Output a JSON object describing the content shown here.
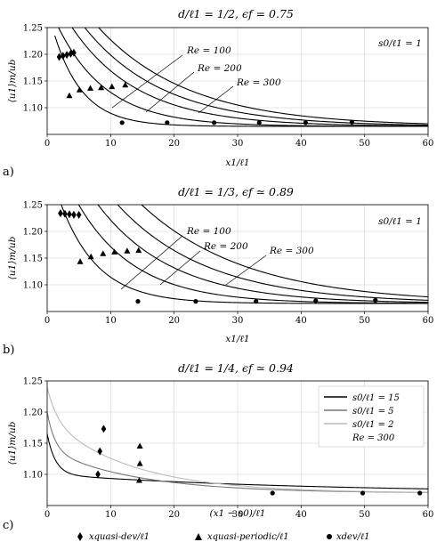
{
  "chart_data": [
    {
      "type": "line",
      "panel": "a)",
      "title": "d/ℓ1 = 1/2, ϵf = 0.75",
      "xlabel": "x1/ℓ1",
      "ylabel": "⟨u1⟩m/ub",
      "xlim": [
        0,
        60
      ],
      "ylim": [
        1.05,
        1.25
      ],
      "xticks": [
        0,
        10,
        20,
        30,
        40,
        50,
        60
      ],
      "yticks": [
        1.1,
        1.15,
        1.2,
        1.25
      ],
      "ytick_labels": [
        "1.10",
        "1.15",
        "1.20",
        "1.25"
      ],
      "grid": true,
      "inset_text": "s0/ℓ1 = 1",
      "annotations": [
        "Re = 100",
        "Re = 200",
        "Re = 300"
      ],
      "series": [
        {
          "a": 0.17,
          "b": 0.22
        },
        {
          "a": 0.2,
          "b": 0.13
        },
        {
          "a": 0.24,
          "b": 0.095
        },
        {
          "a": 0.27,
          "b": 0.08
        },
        {
          "a": 0.3,
          "b": 0.07
        }
      ],
      "markers_quasi_dev": [
        [
          1.9,
          1.195
        ],
        [
          2.5,
          1.197
        ],
        [
          3.1,
          1.199
        ],
        [
          3.7,
          1.201
        ],
        [
          4.2,
          1.203
        ]
      ],
      "markers_quasi_periodic": [
        [
          3.5,
          1.122
        ],
        [
          5.1,
          1.133
        ],
        [
          6.8,
          1.136
        ],
        [
          8.5,
          1.137
        ],
        [
          10.2,
          1.139
        ],
        [
          12.3,
          1.142
        ]
      ],
      "markers_dev": [
        [
          11.8,
          1.072
        ],
        [
          18.9,
          1.072
        ],
        [
          26.3,
          1.072
        ],
        [
          33.4,
          1.072
        ],
        [
          40.7,
          1.072
        ],
        [
          48.0,
          1.073
        ]
      ]
    },
    {
      "type": "line",
      "panel": "b)",
      "title": "d/ℓ1 = 1/3, ϵf ≃ 0.89",
      "xlabel": "x1/ℓ1",
      "ylabel": "⟨u1⟩m/ub",
      "xlim": [
        0,
        60
      ],
      "ylim": [
        1.05,
        1.25
      ],
      "xticks": [
        0,
        10,
        20,
        30,
        40,
        50,
        60
      ],
      "yticks": [
        1.1,
        1.15,
        1.2,
        1.25
      ],
      "ytick_labels": [
        "1.10",
        "1.15",
        "1.20",
        "1.25"
      ],
      "grid": true,
      "inset_text": "s0/ℓ1 = 1",
      "annotations": [
        "Re = 100",
        "Re = 200",
        "Re = 300"
      ],
      "series": [
        {
          "a": 0.22,
          "b": 0.17
        },
        {
          "a": 0.28,
          "b": 0.11
        },
        {
          "a": 0.33,
          "b": 0.085
        },
        {
          "a": 0.37,
          "b": 0.07
        },
        {
          "a": 0.42,
          "b": 0.06
        }
      ],
      "markers_quasi_dev": [
        [
          2.1,
          1.234
        ],
        [
          2.8,
          1.233
        ],
        [
          3.5,
          1.232
        ],
        [
          4.2,
          1.231
        ],
        [
          5.0,
          1.231
        ]
      ],
      "markers_quasi_periodic": [
        [
          5.2,
          1.143
        ],
        [
          6.9,
          1.152
        ],
        [
          8.8,
          1.158
        ],
        [
          10.6,
          1.161
        ],
        [
          12.6,
          1.163
        ],
        [
          14.4,
          1.164
        ]
      ],
      "markers_dev": [
        [
          14.3,
          1.069
        ],
        [
          23.4,
          1.069
        ],
        [
          32.9,
          1.069
        ],
        [
          42.3,
          1.07
        ],
        [
          51.7,
          1.071
        ]
      ]
    },
    {
      "type": "line",
      "panel": "c)",
      "title": "d/ℓ1 = 1/4, ϵf ≃ 0.94",
      "xlabel": "(x1 − s0)/ℓ1",
      "ylabel": "⟨u1⟩m/ub",
      "xlim": [
        0,
        60
      ],
      "ylim": [
        1.05,
        1.25
      ],
      "xticks": [
        0,
        10,
        20,
        30,
        40,
        50,
        60
      ],
      "yticks": [
        1.1,
        1.15,
        1.2,
        1.25
      ],
      "ytick_labels": [
        "1.10",
        "1.15",
        "1.20",
        "1.25"
      ],
      "grid": true,
      "legend_position": "top-right",
      "legend": [
        {
          "label": "s0/ℓ1 = 15",
          "color": "#000000"
        },
        {
          "label": "s0/ℓ1 = 5",
          "color": "#777777"
        },
        {
          "label": "s0/ℓ1 = 2",
          "color": "#bbbbbb"
        }
      ],
      "legend_note": "Re = 300",
      "series": [
        {
          "color": "#000000"
        },
        {
          "color": "#777777"
        },
        {
          "color": "#bbbbbb"
        }
      ],
      "markers_quasi_dev": [
        [
          8.0,
          1.1
        ],
        [
          8.3,
          1.137
        ],
        [
          8.9,
          1.173
        ]
      ],
      "markers_quasi_periodic": [
        [
          14.5,
          1.09
        ],
        [
          14.6,
          1.117
        ],
        [
          14.6,
          1.145
        ]
      ],
      "markers_dev": [
        [
          35.5,
          1.07
        ],
        [
          49.7,
          1.07
        ],
        [
          58.7,
          1.07
        ]
      ]
    }
  ],
  "legend": {
    "quasi_dev": "xquasi-dev/ℓ1",
    "quasi_periodic": "xquasi-periodic/ℓ1",
    "dev": "xdev/ℓ1"
  }
}
